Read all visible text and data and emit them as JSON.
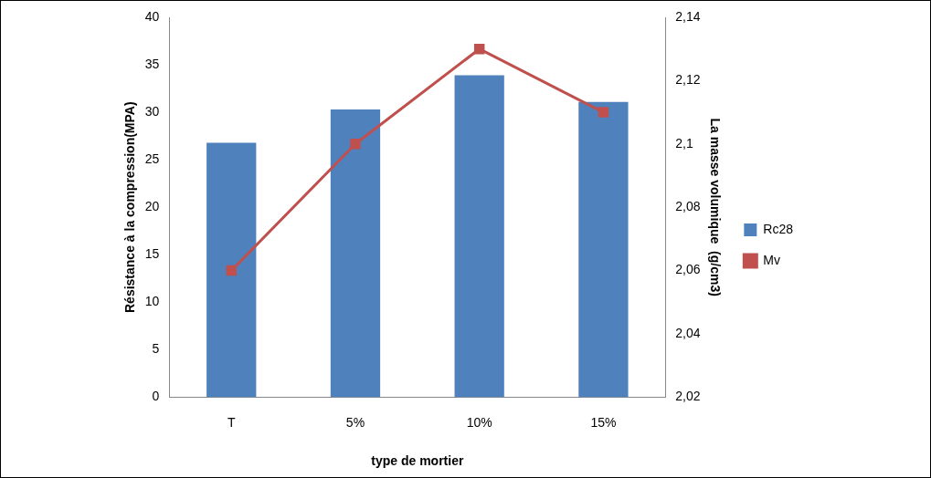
{
  "chart_data": {
    "type": "bar",
    "categories": [
      "T",
      "5%",
      "10%",
      "15%"
    ],
    "xlabel": "type de mortier",
    "ylabel": "Résistance à la compression(MPA)",
    "y2label": "La masse volumique  (g/cm3)",
    "series": [
      {
        "name": "Rc28",
        "color": "#4f81bd",
        "values": [
          26.8,
          30.3,
          33.9,
          31.1
        ]
      },
      {
        "name": "Mv",
        "type": "line",
        "axis": "y2",
        "color": "#c0504d",
        "marker": "square",
        "values": [
          2.06,
          2.1,
          2.13,
          2.11
        ]
      }
    ],
    "ylim": [
      0,
      40
    ],
    "yticks": [
      0,
      5,
      10,
      15,
      20,
      25,
      30,
      35,
      40
    ],
    "y2lim": [
      2.02,
      2.14
    ],
    "y2ticks": [
      {
        "value": 2.02,
        "label": "2,02"
      },
      {
        "value": 2.04,
        "label": "2,04"
      },
      {
        "value": 2.06,
        "label": "2,06"
      },
      {
        "value": 2.08,
        "label": "2,08"
      },
      {
        "value": 2.1,
        "label": "2,1"
      },
      {
        "value": 2.12,
        "label": "2,12"
      },
      {
        "value": 2.14,
        "label": "2,14"
      }
    ],
    "legend": "right"
  }
}
